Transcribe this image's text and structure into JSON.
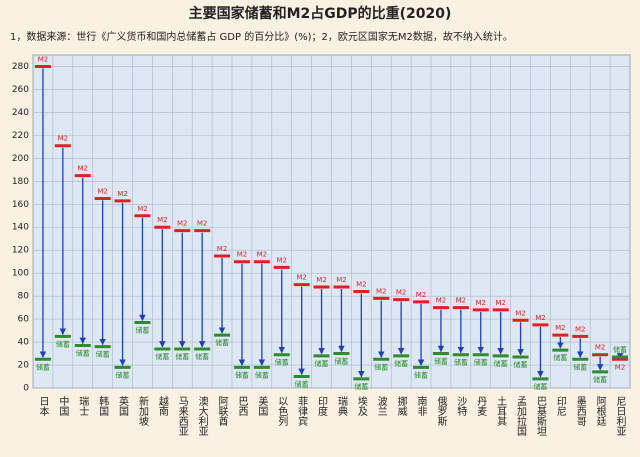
{
  "chart_data": {
    "type": "arrow-range",
    "title": "主要国家储蓄和M2占GDP的比重(2020)",
    "subtitle": "1，数据来源：世行《广义货币和国内总储蓄占 GDP 的百分比》(%)；2，欧元区国家无M2数据，故不纳入统计。",
    "categories": [
      "日本",
      "中国",
      "瑞士",
      "韩国",
      "英国",
      "新加坡",
      "越南",
      "马来西亚",
      "澳大利亚",
      "阿联酋",
      "巴西",
      "美国",
      "以色列",
      "菲律宾",
      "印度",
      "瑞典",
      "埃及",
      "波兰",
      "挪威",
      "南非",
      "俄罗斯",
      "沙特",
      "丹麦",
      "土耳其",
      "孟加拉国",
      "巴基斯坦",
      "印尼",
      "墨西哥",
      "阿根廷",
      "尼日利亚"
    ],
    "series": [
      {
        "name": "M2",
        "color": "#e02020",
        "values": [
          280,
          211,
          185,
          165,
          163,
          150,
          140,
          137,
          137,
          115,
          110,
          110,
          105,
          90,
          88,
          88,
          84,
          78,
          77,
          75,
          70,
          70,
          68,
          68,
          59,
          55,
          46,
          45,
          29,
          25
        ]
      },
      {
        "name": "储蓄",
        "color": "#2e8b2e",
        "values": [
          25,
          45,
          37,
          36,
          18,
          57,
          34,
          34,
          34,
          46,
          18,
          18,
          29,
          10,
          28,
          30,
          8,
          25,
          28,
          18,
          30,
          29,
          29,
          28,
          27,
          8,
          33,
          25,
          14,
          27
        ]
      }
    ],
    "arrow_color": "#1f3fbf",
    "ylim": [
      0,
      290
    ],
    "yticks": [
      0,
      20,
      40,
      60,
      80,
      100,
      120,
      140,
      160,
      180,
      200,
      220,
      240,
      260,
      280
    ],
    "grid": true
  }
}
